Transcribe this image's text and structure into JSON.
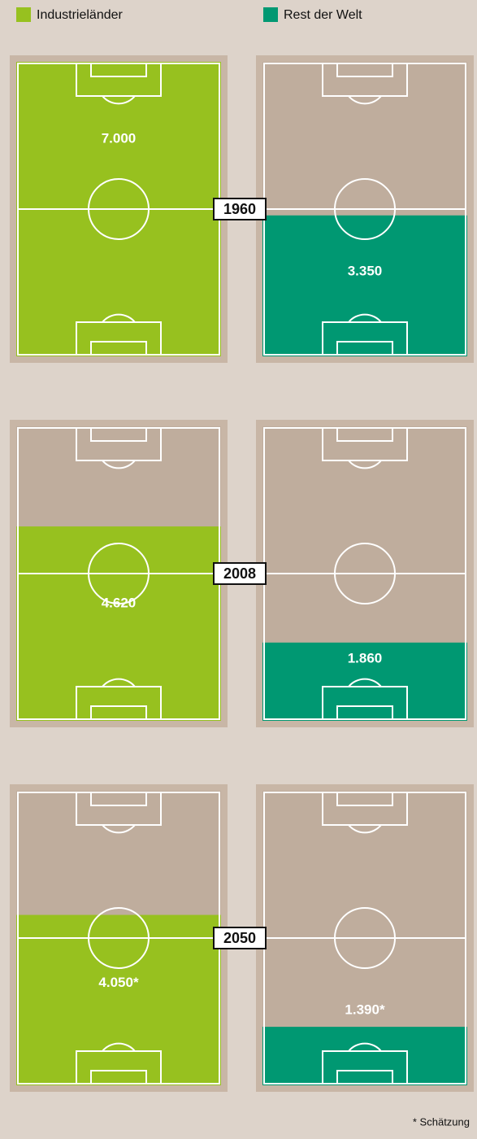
{
  "chart_data": {
    "type": "bar",
    "categories": [
      "1960",
      "2008",
      "2050"
    ],
    "series": [
      {
        "name": "Industrieländer",
        "color": "#97c11f",
        "values": [
          7000,
          4620,
          4050
        ],
        "value_labels": [
          "7.000",
          "4.620",
          "4.050*"
        ]
      },
      {
        "name": "Rest der Welt",
        "color": "#009872",
        "values": [
          3350,
          1860,
          1390
        ],
        "value_labels": [
          "3.350",
          "1.860",
          "1.390*"
        ]
      }
    ],
    "note": "* Schätzung"
  }
}
